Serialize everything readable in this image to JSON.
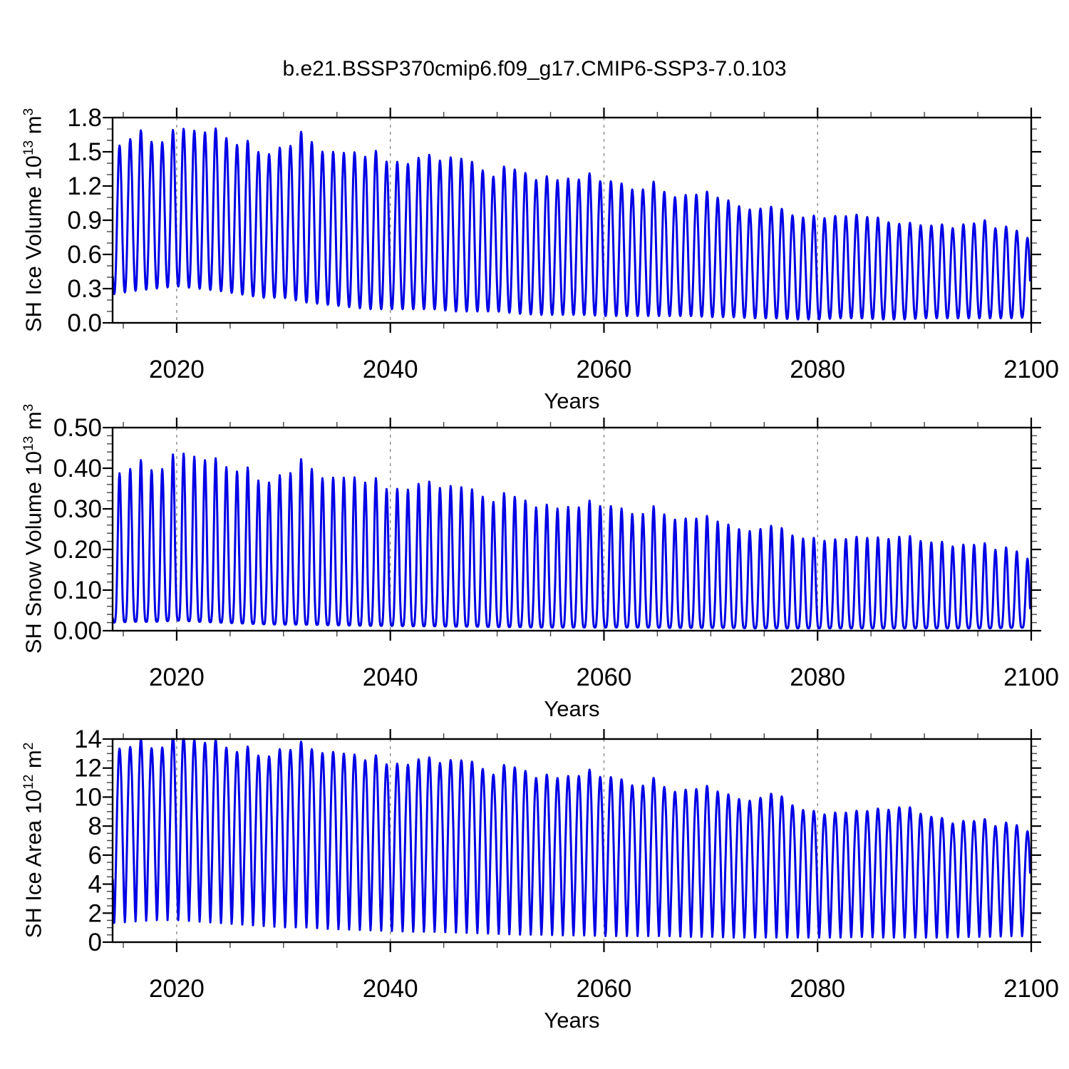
{
  "title": "b.e21.BSSP370cmip6.f09_g17.CMIP6-SSP3-7.0.103",
  "line_color": "#0000E6",
  "grid_color": "#8a8a8a",
  "chart_data": [
    {
      "type": "line",
      "panel": "SH Ice Volume",
      "ylabel": "SH Ice Volume 10^13 m^3",
      "ylabel_parts": {
        "base": "SH Ice Volume 10",
        "exp": "13",
        "unit_base": " m",
        "unit_exp": "3"
      },
      "xlabel": "Years",
      "xlim": [
        2014,
        2100
      ],
      "ylim": [
        0,
        1.8
      ],
      "x_tick_years": [
        2020,
        2040,
        2060,
        2080,
        2100
      ],
      "x_tick_labels": [
        "2020",
        "2040",
        "2060",
        "2080",
        "2100"
      ],
      "x_minor_step": 5,
      "y_tick_values": [
        0.0,
        0.3,
        0.6,
        0.9,
        1.2,
        1.5,
        1.8
      ],
      "y_tick_labels": [
        "0.0",
        "0.3",
        "0.6",
        "0.9",
        "1.2",
        "1.5",
        "1.8"
      ],
      "y_major_step": 0.3,
      "y_minor_step": 0.1,
      "grid_years": [
        2020,
        2040,
        2060,
        2080
      ],
      "grid_on": true,
      "legend": "none",
      "series": [
        {
          "name": "SH ice volume (monthly, annual cycle)",
          "cadence": "monthly",
          "t_start": 2014.02,
          "t_end": 2099.92,
          "points_per_year": 24,
          "phase_min": 0.15,
          "peak_sharpness": 1.15,
          "jitter": 0.05,
          "envelope": {
            "years": [
              2014,
              2016,
              2018,
              2020,
              2022,
              2024,
              2026,
              2028,
              2030,
              2032,
              2034,
              2036,
              2038,
              2040,
              2042,
              2044,
              2046,
              2048,
              2050,
              2052,
              2054,
              2056,
              2058,
              2060,
              2062,
              2064,
              2066,
              2068,
              2070,
              2072,
              2074,
              2076,
              2078,
              2080,
              2082,
              2084,
              2086,
              2088,
              2090,
              2092,
              2094,
              2096,
              2098,
              2100
            ],
            "annual_max": [
              1.55,
              1.66,
              1.6,
              1.64,
              1.66,
              1.66,
              1.58,
              1.54,
              1.56,
              1.63,
              1.48,
              1.48,
              1.5,
              1.46,
              1.4,
              1.43,
              1.43,
              1.36,
              1.33,
              1.31,
              1.28,
              1.25,
              1.26,
              1.27,
              1.22,
              1.2,
              1.16,
              1.12,
              1.1,
              1.05,
              0.97,
              1.02,
              0.97,
              0.93,
              0.96,
              0.94,
              0.9,
              0.87,
              0.86,
              0.85,
              0.86,
              0.88,
              0.82,
              0.76
            ],
            "annual_min": [
              0.25,
              0.28,
              0.3,
              0.32,
              0.3,
              0.28,
              0.25,
              0.22,
              0.22,
              0.18,
              0.16,
              0.14,
              0.12,
              0.12,
              0.12,
              0.12,
              0.1,
              0.1,
              0.1,
              0.08,
              0.07,
              0.07,
              0.07,
              0.06,
              0.06,
              0.06,
              0.06,
              0.06,
              0.05,
              0.05,
              0.04,
              0.04,
              0.03,
              0.03,
              0.04,
              0.04,
              0.03,
              0.03,
              0.04,
              0.04,
              0.04,
              0.04,
              0.04,
              0.05
            ]
          }
        }
      ]
    },
    {
      "type": "line",
      "panel": "SH Snow Volume",
      "ylabel": "SH Snow Volume 10^13 m^3",
      "ylabel_parts": {
        "base": "SH Snow Volume 10",
        "exp": "13",
        "unit_base": " m",
        "unit_exp": "3"
      },
      "xlabel": "Years",
      "xlim": [
        2014,
        2100
      ],
      "ylim": [
        0,
        0.5
      ],
      "x_tick_years": [
        2020,
        2040,
        2060,
        2080,
        2100
      ],
      "x_tick_labels": [
        "2020",
        "2040",
        "2060",
        "2080",
        "2100"
      ],
      "x_minor_step": 5,
      "y_tick_values": [
        0.0,
        0.1,
        0.2,
        0.3,
        0.4,
        0.5
      ],
      "y_tick_labels": [
        "0.00",
        "0.10",
        "0.20",
        "0.30",
        "0.40",
        "0.50"
      ],
      "y_major_step": 0.1,
      "y_minor_step": 0.02,
      "grid_years": [
        2020,
        2040,
        2060,
        2080
      ],
      "grid_on": true,
      "legend": "none",
      "series": [
        {
          "name": "SH snow volume (monthly, annual cycle)",
          "cadence": "monthly",
          "t_start": 2014.02,
          "t_end": 2099.92,
          "points_per_year": 24,
          "phase_min": 0.15,
          "peak_sharpness": 1.9,
          "jitter": 0.05,
          "envelope": {
            "years": [
              2014,
              2016,
              2018,
              2020,
              2022,
              2024,
              2026,
              2028,
              2030,
              2032,
              2034,
              2036,
              2038,
              2040,
              2042,
              2044,
              2046,
              2048,
              2050,
              2052,
              2054,
              2056,
              2058,
              2060,
              2062,
              2064,
              2066,
              2068,
              2070,
              2072,
              2074,
              2076,
              2078,
              2080,
              2082,
              2084,
              2086,
              2088,
              2090,
              2092,
              2094,
              2096,
              2098,
              2100
            ],
            "annual_max": [
              0.39,
              0.41,
              0.4,
              0.42,
              0.42,
              0.41,
              0.4,
              0.38,
              0.39,
              0.41,
              0.37,
              0.375,
              0.375,
              0.36,
              0.35,
              0.355,
              0.35,
              0.335,
              0.33,
              0.32,
              0.31,
              0.3,
              0.305,
              0.315,
              0.3,
              0.295,
              0.29,
              0.275,
              0.27,
              0.255,
              0.24,
              0.26,
              0.24,
              0.225,
              0.23,
              0.23,
              0.225,
              0.235,
              0.22,
              0.215,
              0.21,
              0.21,
              0.2,
              0.18
            ],
            "annual_min": [
              0.02,
              0.022,
              0.022,
              0.025,
              0.022,
              0.02,
              0.018,
              0.016,
              0.015,
              0.015,
              0.014,
              0.013,
              0.012,
              0.012,
              0.011,
              0.011,
              0.01,
              0.01,
              0.009,
              0.009,
              0.008,
              0.008,
              0.008,
              0.008,
              0.008,
              0.008,
              0.007,
              0.007,
              0.007,
              0.007,
              0.006,
              0.006,
              0.006,
              0.006,
              0.006,
              0.006,
              0.006,
              0.006,
              0.006,
              0.006,
              0.006,
              0.006,
              0.007,
              0.008
            ]
          }
        }
      ]
    },
    {
      "type": "line",
      "panel": "SH Ice Area",
      "ylabel": "SH Ice Area 10^12 m^2",
      "ylabel_parts": {
        "base": "SH Ice Area 10",
        "exp": "12",
        "unit_base": " m",
        "unit_exp": "2"
      },
      "xlabel": "Years",
      "xlim": [
        2014,
        2100
      ],
      "ylim": [
        0,
        14
      ],
      "x_tick_years": [
        2020,
        2040,
        2060,
        2080,
        2100
      ],
      "x_tick_labels": [
        "2020",
        "2040",
        "2060",
        "2080",
        "2100"
      ],
      "x_minor_step": 5,
      "y_tick_values": [
        0,
        2,
        4,
        6,
        8,
        10,
        12,
        14
      ],
      "y_tick_labels": [
        "0",
        "2",
        "4",
        "6",
        "8",
        "10",
        "12",
        "14"
      ],
      "y_major_step": 2,
      "y_minor_step": 0.5,
      "grid_years": [
        2020,
        2040,
        2060,
        2080
      ],
      "grid_on": true,
      "legend": "none",
      "series": [
        {
          "name": "SH ice area (monthly, annual cycle)",
          "cadence": "monthly",
          "t_start": 2014.02,
          "t_end": 2099.92,
          "points_per_year": 24,
          "phase_min": 0.15,
          "peak_sharpness": 0.75,
          "jitter": 0.04,
          "envelope": {
            "years": [
              2014,
              2016,
              2018,
              2020,
              2022,
              2024,
              2026,
              2028,
              2030,
              2032,
              2034,
              2036,
              2038,
              2040,
              2042,
              2044,
              2046,
              2048,
              2050,
              2052,
              2054,
              2056,
              2058,
              2060,
              2062,
              2064,
              2066,
              2068,
              2070,
              2072,
              2074,
              2076,
              2078,
              2080,
              2082,
              2084,
              2086,
              2088,
              2090,
              2092,
              2094,
              2096,
              2098,
              2100
            ],
            "annual_max": [
              13.5,
              13.7,
              13.5,
              13.9,
              13.7,
              13.6,
              13.3,
              13.2,
              13.5,
              13.4,
              13.0,
              12.9,
              12.8,
              12.6,
              12.3,
              12.4,
              12.4,
              12.1,
              11.9,
              11.8,
              11.5,
              11.3,
              11.5,
              11.6,
              11.2,
              11.0,
              10.8,
              10.5,
              10.4,
              10.0,
              9.6,
              10.3,
              9.6,
              8.9,
              9.1,
              9.0,
              9.1,
              9.4,
              8.8,
              8.4,
              8.3,
              8.3,
              8.1,
              7.8
            ],
            "annual_min": [
              1.3,
              1.4,
              1.5,
              1.5,
              1.4,
              1.3,
              1.2,
              1.1,
              1.0,
              1.0,
              0.9,
              0.85,
              0.8,
              0.75,
              0.7,
              0.7,
              0.65,
              0.6,
              0.55,
              0.5,
              0.5,
              0.45,
              0.45,
              0.4,
              0.4,
              0.4,
              0.4,
              0.35,
              0.35,
              0.3,
              0.3,
              0.3,
              0.3,
              0.3,
              0.3,
              0.35,
              0.3,
              0.3,
              0.3,
              0.3,
              0.35,
              0.35,
              0.4,
              0.4
            ]
          }
        }
      ]
    }
  ]
}
